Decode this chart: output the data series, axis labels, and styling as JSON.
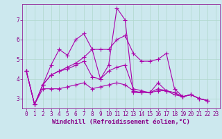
{
  "background_color": "#cce8ee",
  "line_color": "#aa00aa",
  "marker": "+",
  "markersize": 4,
  "linewidth": 0.8,
  "xlabel": "Windchill (Refroidissement éolien,°C)",
  "xlabel_fontsize": 6.5,
  "tick_fontsize": 5.5,
  "xlim": [
    -0.5,
    23.5
  ],
  "ylim": [
    2.5,
    7.8
  ],
  "yticks": [
    3,
    4,
    5,
    6,
    7
  ],
  "xticks": [
    0,
    1,
    2,
    3,
    4,
    5,
    6,
    7,
    8,
    9,
    10,
    11,
    12,
    13,
    14,
    15,
    16,
    17,
    18,
    19,
    20,
    21,
    22,
    23
  ],
  "series": [
    [
      4.4,
      2.7,
      3.7,
      4.7,
      5.5,
      5.2,
      6.0,
      6.3,
      5.5,
      4.0,
      4.7,
      7.6,
      7.0,
      3.3,
      3.3,
      3.3,
      3.8,
      3.4,
      3.2,
      3.1,
      3.2,
      3.0,
      2.9
    ],
    [
      4.4,
      2.7,
      3.7,
      4.2,
      4.4,
      4.5,
      4.7,
      4.9,
      4.1,
      4.0,
      4.4,
      4.6,
      4.7,
      3.5,
      3.4,
      3.3,
      3.5,
      3.4,
      3.3,
      3.1,
      3.2,
      3.0,
      2.9
    ],
    [
      4.4,
      2.7,
      3.7,
      4.2,
      4.4,
      4.6,
      4.8,
      5.1,
      5.5,
      5.5,
      5.5,
      6.0,
      6.2,
      5.3,
      4.9,
      4.9,
      5.0,
      5.3,
      3.5,
      3.1,
      3.2,
      3.0,
      2.9
    ],
    [
      4.4,
      2.7,
      3.5,
      3.5,
      3.5,
      3.6,
      3.7,
      3.8,
      3.5,
      3.6,
      3.7,
      3.8,
      3.7,
      3.4,
      3.3,
      3.3,
      3.4,
      3.4,
      3.3,
      3.1,
      3.2,
      3.0,
      2.9
    ]
  ],
  "grid_color": "#b0d8cc",
  "grid_linewidth": 0.5,
  "fig_width": 3.2,
  "fig_height": 2.0,
  "dpi": 100
}
